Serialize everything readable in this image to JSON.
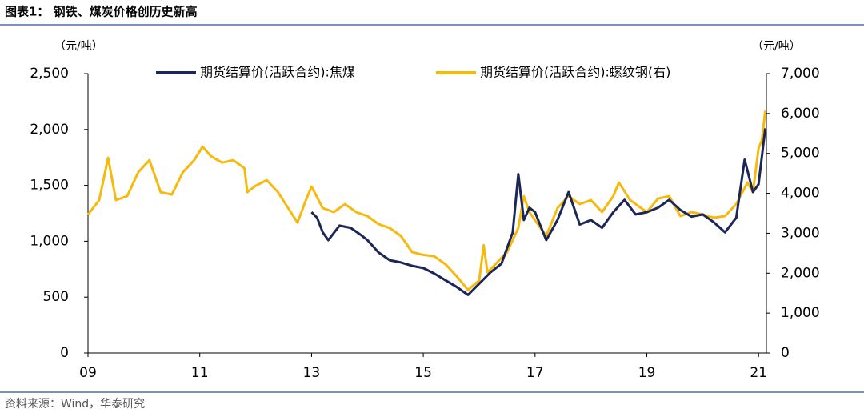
{
  "header": {
    "title": "图表1： 钢铁、煤炭价格创历史新高"
  },
  "footer": {
    "source": "资料来源：Wind，华泰研究"
  },
  "chart_data": {
    "type": "line",
    "y_unit": "（元/吨）",
    "y2_unit": "（元/吨）",
    "xlim": [
      2009,
      2021.14
    ],
    "xticks": [
      {
        "value": 2009,
        "label": "09"
      },
      {
        "value": 2011,
        "label": "11"
      },
      {
        "value": 2013,
        "label": "13"
      },
      {
        "value": 2015,
        "label": "15"
      },
      {
        "value": 2017,
        "label": "17"
      },
      {
        "value": 2019,
        "label": "19"
      },
      {
        "value": 2021,
        "label": "21"
      }
    ],
    "ylim": [
      0,
      2500
    ],
    "yticks": [
      0,
      500,
      {
        "value": 1000,
        "label": "1,000"
      },
      {
        "value": 1500,
        "label": "1,500"
      },
      {
        "value": 2000,
        "label": "2,000"
      },
      {
        "value": 2500,
        "label": "2,500"
      }
    ],
    "y2lim": [
      0,
      7000
    ],
    "y2ticks": [
      0,
      {
        "value": 1000,
        "label": "1,000"
      },
      {
        "value": 2000,
        "label": "2,000"
      },
      {
        "value": 3000,
        "label": "3,000"
      },
      {
        "value": 4000,
        "label": "4,000"
      },
      {
        "value": 5000,
        "label": "5,000"
      },
      {
        "value": 6000,
        "label": "6,000"
      },
      {
        "value": 7000,
        "label": "7,000"
      }
    ],
    "series": [
      {
        "name": "期货结算价(活跃合约):焦煤",
        "color": "#1c2757",
        "x": [
          2013.0,
          2013.1,
          2013.2,
          2013.3,
          2013.5,
          2013.7,
          2013.9,
          2014.0,
          2014.2,
          2014.4,
          2014.6,
          2014.8,
          2015.0,
          2015.2,
          2015.4,
          2015.6,
          2015.8,
          2016.0,
          2016.2,
          2016.4,
          2016.6,
          2016.7,
          2016.8,
          2016.9,
          2017.0,
          2017.2,
          2017.4,
          2017.6,
          2017.8,
          2018.0,
          2018.2,
          2018.4,
          2018.6,
          2018.8,
          2019.0,
          2019.2,
          2019.4,
          2019.6,
          2019.8,
          2020.0,
          2020.2,
          2020.4,
          2020.6,
          2020.75,
          2020.9,
          2021.0,
          2021.12
        ],
        "values": [
          1260,
          1210,
          1080,
          1010,
          1140,
          1120,
          1050,
          1010,
          900,
          830,
          810,
          780,
          760,
          710,
          650,
          590,
          520,
          620,
          720,
          800,
          1080,
          1600,
          1190,
          1300,
          1260,
          1010,
          1190,
          1440,
          1150,
          1190,
          1120,
          1260,
          1370,
          1240,
          1260,
          1300,
          1370,
          1280,
          1220,
          1240,
          1170,
          1080,
          1210,
          1730,
          1440,
          1510,
          2010
        ]
      },
      {
        "name": "期货结算价(活跃合约):螺纹钢(右)",
        "color": "#f6b90f",
        "axis": "y2",
        "x": [
          2009.0,
          2009.2,
          2009.36,
          2009.5,
          2009.7,
          2009.9,
          2010.1,
          2010.3,
          2010.5,
          2010.7,
          2010.9,
          2011.05,
          2011.2,
          2011.4,
          2011.6,
          2011.8,
          2011.85,
          2012.0,
          2012.2,
          2012.4,
          2012.6,
          2012.75,
          2012.9,
          2013.0,
          2013.2,
          2013.4,
          2013.6,
          2013.8,
          2014.0,
          2014.2,
          2014.4,
          2014.6,
          2014.8,
          2015.0,
          2015.2,
          2015.4,
          2015.6,
          2015.8,
          2016.0,
          2016.08,
          2016.15,
          2016.5,
          2016.7,
          2016.8,
          2016.9,
          2017.0,
          2017.2,
          2017.4,
          2017.6,
          2017.8,
          2018.0,
          2018.2,
          2018.4,
          2018.5,
          2018.7,
          2018.9,
          2019.0,
          2019.2,
          2019.4,
          2019.6,
          2019.8,
          2020.0,
          2020.2,
          2020.4,
          2020.6,
          2020.8,
          2020.9,
          2021.0,
          2021.06,
          2021.12
        ],
        "values": [
          3470,
          3830,
          4890,
          3830,
          3930,
          4530,
          4830,
          4030,
          3970,
          4530,
          4830,
          5170,
          4930,
          4770,
          4830,
          4630,
          4030,
          4190,
          4330,
          4030,
          3590,
          3270,
          3830,
          4170,
          3630,
          3530,
          3730,
          3530,
          3430,
          3230,
          3130,
          2930,
          2530,
          2460,
          2420,
          2220,
          1920,
          1580,
          1820,
          2700,
          2020,
          2530,
          3130,
          3930,
          3530,
          3330,
          2930,
          3630,
          3930,
          3730,
          3830,
          3530,
          3930,
          4270,
          3830,
          3630,
          3530,
          3870,
          3930,
          3430,
          3530,
          3470,
          3390,
          3430,
          3730,
          4270,
          4030,
          5130,
          5330,
          6070
        ]
      }
    ]
  }
}
